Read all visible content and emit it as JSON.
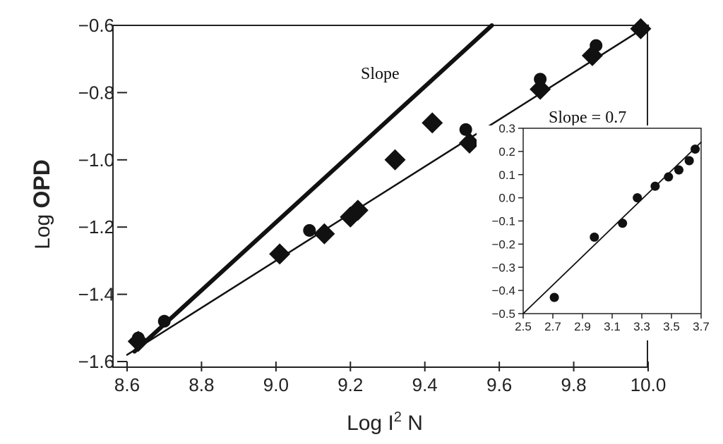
{
  "chart_data": [
    {
      "type": "scatter",
      "title": "",
      "xlabel": "Log I² N",
      "xlabel_parts": {
        "pre": "Log I",
        "sup": "2",
        "post": " N"
      },
      "ylabel": "Log OPD",
      "ylabel_parts": {
        "pre": "Log ",
        "bold": "OPD"
      },
      "xlim": [
        8.6,
        10.0
      ],
      "ylim": [
        -1.6,
        -0.6
      ],
      "xticks": [
        "8.6",
        "8.8",
        "9.0",
        "9.2",
        "9.4",
        "9.6",
        "9.8",
        "10.0"
      ],
      "yticks": [
        "-0.6",
        "-0.8",
        "-1.0",
        "-1.2",
        "-1.4",
        "-1.6"
      ],
      "grid": false,
      "annotations": [
        "Slope",
        "Slope = 0.7"
      ],
      "series": [
        {
          "marker": "circle",
          "x": [
            8.63,
            8.7,
            9.09,
            9.51,
            9.71,
            9.86,
            9.98
          ],
          "y": [
            -1.53,
            -1.48,
            -1.21,
            -0.91,
            -0.76,
            -0.66,
            -0.61
          ]
        },
        {
          "marker": "diamond",
          "x": [
            8.63,
            9.01,
            9.13,
            9.2,
            9.22,
            9.32,
            9.42,
            9.52,
            9.71,
            9.85,
            9.98
          ],
          "y": [
            -1.54,
            -1.28,
            -1.22,
            -1.17,
            -1.15,
            -1.0,
            -0.89,
            -0.95,
            -0.79,
            -0.69,
            -0.61
          ]
        }
      ],
      "lines": [
        {
          "style": "thick",
          "x": [
            8.62,
            9.58
          ],
          "y": [
            -1.57,
            -0.6
          ]
        },
        {
          "style": "thin",
          "x": [
            8.6,
            10.0
          ],
          "y": [
            -1.58,
            -0.6
          ]
        }
      ]
    },
    {
      "type": "scatter",
      "title": "",
      "xlabel": "",
      "ylabel": "",
      "xlim": [
        2.5,
        3.7
      ],
      "ylim": [
        -0.5,
        0.3
      ],
      "xticks": [
        "2.5",
        "2.7",
        "2.9",
        "3.1",
        "3.3",
        "3.5",
        "3.7"
      ],
      "yticks": [
        "0.3",
        "0.2",
        "0.1",
        "0.0",
        "-0.1",
        "-0.2",
        "-0.3",
        "-0.4",
        "-0.5"
      ],
      "grid": false,
      "series": [
        {
          "marker": "circle",
          "x": [
            2.71,
            2.98,
            3.17,
            3.27,
            3.39,
            3.48,
            3.55,
            3.62,
            3.66
          ],
          "y": [
            -0.43,
            -0.17,
            -0.11,
            0.0,
            0.05,
            0.09,
            0.12,
            0.16,
            0.21
          ]
        }
      ],
      "lines": [
        {
          "style": "thin",
          "x": [
            2.5,
            3.7
          ],
          "y": [
            -0.5,
            0.24
          ]
        }
      ]
    }
  ]
}
